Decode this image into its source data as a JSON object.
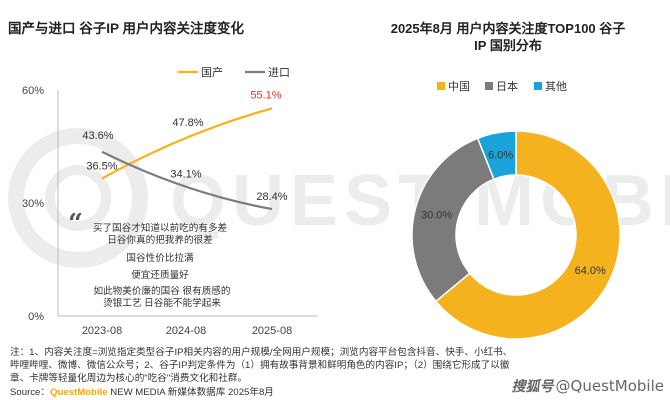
{
  "chart_data": [
    {
      "type": "line",
      "title": "国产与进口 谷子IP 用户内容关注度变化",
      "categories": [
        "2023-08",
        "2024-08",
        "2025-08"
      ],
      "series": [
        {
          "name": "国产",
          "color": "#f5b21f",
          "values": [
            36.5,
            47.8,
            55.1
          ],
          "labels": [
            "36.5%",
            "47.8%",
            "55.1%"
          ]
        },
        {
          "name": "进口",
          "color": "#7b7b7b",
          "values": [
            43.6,
            34.1,
            28.4
          ],
          "labels": [
            "43.6%",
            "34.1%",
            "28.4%"
          ]
        }
      ],
      "ylim": [
        0,
        60
      ],
      "yticks": [
        {
          "value": 0,
          "label": "0%"
        },
        {
          "value": 30,
          "label": "30%"
        },
        {
          "value": 60,
          "label": "60%"
        }
      ],
      "legend": "top",
      "highlight_color": "#e8312f",
      "quote_mark": "“",
      "quotes": [
        "买了国谷才知道以前吃的有多差",
        "日谷你真的把我养的很差",
        "国谷性价比拉满",
        "便宜还质量好",
        "如此物美价廉的国谷 很有质感的",
        "烫银工艺 日谷能不能学起来"
      ]
    },
    {
      "type": "pie",
      "title_line1": "2025年8月 用户内容关注度TOP100 谷子",
      "title_line2": "IP 国别分布",
      "legend": "top",
      "slices": [
        {
          "name": "中国",
          "value": 64.0,
          "label": "64.0%",
          "color": "#f5b21f"
        },
        {
          "name": "日本",
          "value": 30.0,
          "label": "30.0%",
          "color": "#7b7b7b"
        },
        {
          "name": "其他",
          "value": 6.0,
          "label": "6.0%",
          "color": "#1aa3d8"
        }
      ]
    }
  ],
  "notes": {
    "line1": "注：1、内容关注度=浏览指定类型谷子IP相关内容的用户规模/全网用户规模；浏览内容平台包含抖音、快手、小红书、",
    "line2": "哔哩哔哩、微博、微信公众号；2、谷子IP判定条件为（1）拥有故事背景和鲜明角色的内容IP；（2）围绕它形成了以徽",
    "line3": "章、卡牌等轻量化周边为核心的\"吃谷\"消费文化和社群。"
  },
  "source": {
    "prefix": "Source：",
    "brand": "QuestMobile",
    "suffix": " NEW MEDIA 新媒体数据库 2025年8月"
  },
  "watermark": {
    "logo": "搜狐号",
    "handle": "@QuestMobile",
    "bg_text": "QUEST MOBILE"
  }
}
